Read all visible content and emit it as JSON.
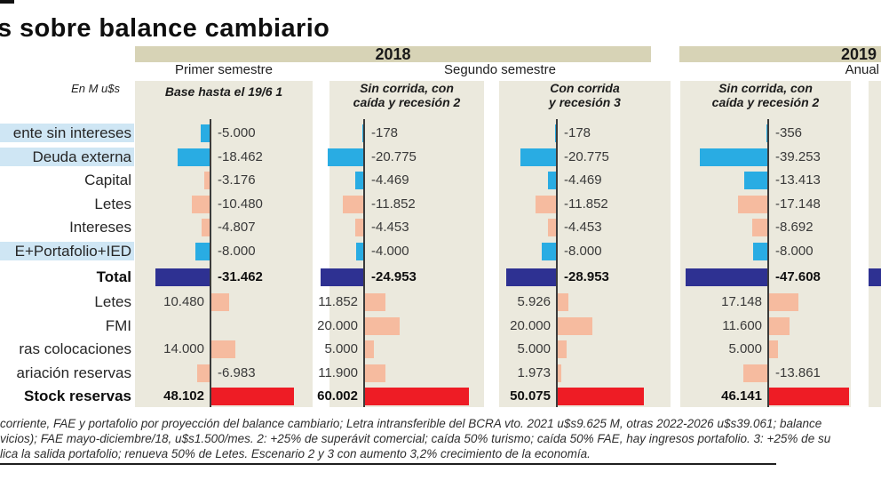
{
  "page": {
    "title": "s sobre balance cambiario",
    "units_label": "En M u$s",
    "year_2018": "2018",
    "year_2019": "2019",
    "semester_first": "Primer semestre",
    "semester_second": "Segundo semestre",
    "semester_annual": "Anual",
    "footnotes": [
      "corriente, FAE y portafolio por proyección del balance cambiario; Letra intransferible del BCRA vto. 2021 u$s9.625 M, otras 2022-2026 u$s39.061; balance",
      "vicios); FAE mayo-diciembre/18, u$s1.500/mes. 2: +25% de superávit comercial; caída 50% turismo; caída 50% FAE, hay ingresos portafolio. 3: +25% de su",
      "lica la salida portafolio; renueva 50% de Letes. Escenario 2 y 3 con aumento 3,2% crecimiento de la economía."
    ]
  },
  "palette": {
    "cyan": "#29ace3",
    "salmon": "#f6bb9f",
    "navy": "#2e3192",
    "red": "#ee1c25",
    "row_highlight": "#cfe6f4",
    "panel_bg": "#ebe9dd",
    "band_bg": "#d7d3b6"
  },
  "chart_data": {
    "type": "bar",
    "orientation": "horizontal",
    "title": "s sobre balance cambiario",
    "units": "En M u$s",
    "grid": false,
    "legend": "none",
    "year_groups": [
      {
        "label": "2018",
        "periods": [
          "Primer semestre",
          "Segundo semestre"
        ]
      },
      {
        "label": "2019",
        "periods": [
          "Anual"
        ]
      }
    ],
    "rows": [
      {
        "label": "ente sin intereses",
        "highlight": true,
        "bold": false
      },
      {
        "label": "Deuda externa",
        "highlight": true,
        "bold": false
      },
      {
        "label": "Capital",
        "highlight": false,
        "bold": false
      },
      {
        "label": "Letes",
        "highlight": false,
        "bold": false
      },
      {
        "label": "Intereses",
        "highlight": false,
        "bold": false
      },
      {
        "label": "E+Portafolio+IED",
        "highlight": true,
        "bold": false
      },
      {
        "label": "Total",
        "highlight": false,
        "bold": true
      },
      {
        "label": "Letes",
        "highlight": false,
        "bold": false
      },
      {
        "label": "FMI",
        "highlight": false,
        "bold": false
      },
      {
        "label": "ras colocaciones",
        "highlight": false,
        "bold": false
      },
      {
        "label": "ariación reservas",
        "highlight": false,
        "bold": false
      },
      {
        "label": "Stock reservas",
        "highlight": false,
        "bold": true
      }
    ],
    "columns": [
      {
        "year": "2018",
        "period": "Primer semestre",
        "scenario": [
          "Base hasta el 19/6 1"
        ],
        "values": [
          -5000,
          -18462,
          -3176,
          -10480,
          -4807,
          -8000,
          -31462,
          10480,
          null,
          14000,
          -6983,
          48102
        ],
        "display": [
          "-5.000",
          "-18.462",
          "-3.176",
          "-10.480",
          "-4.807",
          "-8.000",
          "-31.462",
          "10.480",
          null,
          "14.000",
          "-6.983",
          "48.102"
        ],
        "colors": [
          "cyan",
          "cyan",
          "salmon",
          "salmon",
          "salmon",
          "cyan",
          "navy",
          "salmon",
          null,
          "salmon",
          "salmon",
          "red"
        ]
      },
      {
        "year": "2018",
        "period": "Segundo semestre",
        "scenario": [
          "Sin corrida, con",
          "caída y recesión 2"
        ],
        "values": [
          -178,
          -20775,
          -4469,
          -11852,
          -4453,
          -4000,
          -24953,
          11852,
          20000,
          5000,
          11900,
          60002
        ],
        "display": [
          "-178",
          "-20.775",
          "-4.469",
          "-11.852",
          "-4.453",
          "-4.000",
          "-24.953",
          "11.852",
          "20.000",
          "5.000",
          "11.900",
          "60.002"
        ],
        "colors": [
          "cyan",
          "cyan",
          "cyan",
          "salmon",
          "salmon",
          "cyan",
          "navy",
          "salmon",
          "salmon",
          "salmon",
          "salmon",
          "red"
        ]
      },
      {
        "year": "2018",
        "period": "Segundo semestre",
        "scenario": [
          "Con corrida",
          "y recesión 3"
        ],
        "values": [
          -178,
          -20775,
          -4469,
          -11852,
          -4453,
          -8000,
          -28953,
          5926,
          20000,
          5000,
          1973,
          50075
        ],
        "display": [
          "-178",
          "-20.775",
          "-4.469",
          "-11.852",
          "-4.453",
          "-8.000",
          "-28.953",
          "5.926",
          "20.000",
          "5.000",
          "1.973",
          "50.075"
        ],
        "colors": [
          "cyan",
          "cyan",
          "cyan",
          "salmon",
          "salmon",
          "cyan",
          "navy",
          "salmon",
          "salmon",
          "salmon",
          "salmon",
          "red"
        ]
      },
      {
        "year": "2019",
        "period": "Anual",
        "scenario": [
          "Sin corrida, con",
          "caída y recesión 2"
        ],
        "values": [
          -356,
          -39253,
          -13413,
          -17148,
          -8692,
          -8000,
          -47608,
          17148,
          11600,
          5000,
          -13861,
          46141
        ],
        "display": [
          "-356",
          "-39.253",
          "-13.413",
          "-17.148",
          "-8.692",
          "-8.000",
          "-47.608",
          "17.148",
          "11.600",
          "5.000",
          "-13.861",
          "46.141"
        ],
        "colors": [
          "cyan",
          "cyan",
          "cyan",
          "salmon",
          "salmon",
          "cyan",
          "navy",
          "salmon",
          "salmon",
          "salmon",
          "salmon",
          "red"
        ]
      }
    ]
  }
}
